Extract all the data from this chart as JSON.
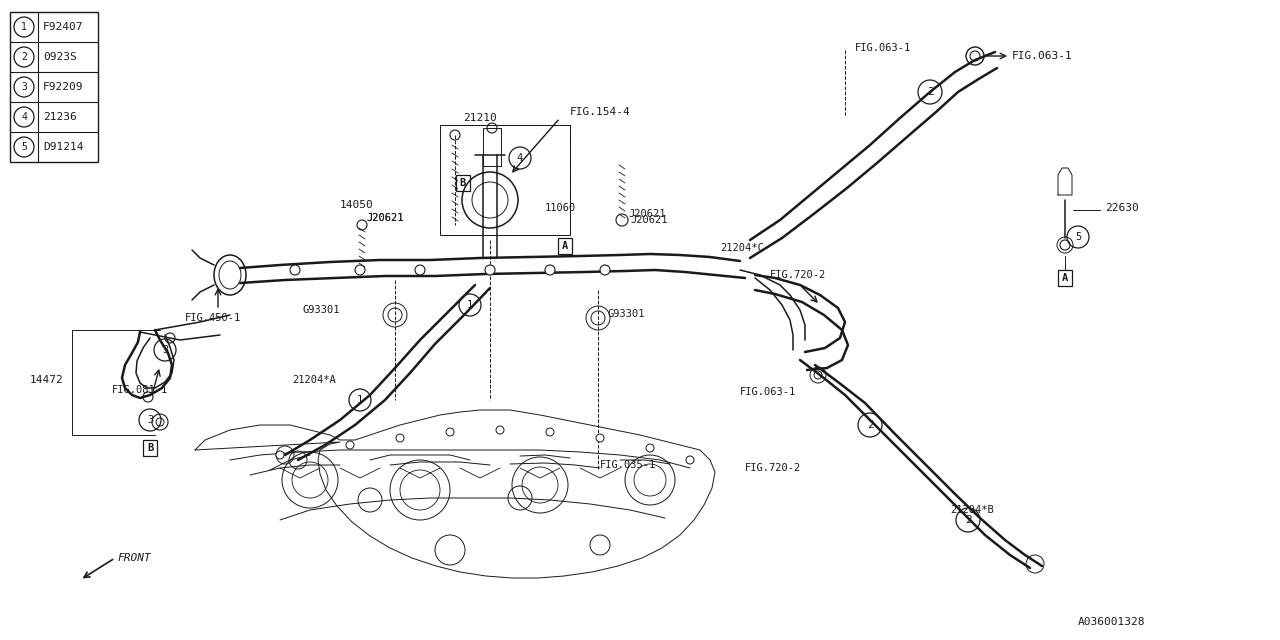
{
  "bg_color": "#ffffff",
  "line_color": "#1a1a1a",
  "part_number": "A036001328",
  "legend": [
    {
      "num": "1",
      "code": "F92407"
    },
    {
      "num": "2",
      "code": "0923S"
    },
    {
      "num": "3",
      "code": "F92209"
    },
    {
      "num": "4",
      "code": "21236"
    },
    {
      "num": "5",
      "code": "D91214"
    }
  ]
}
